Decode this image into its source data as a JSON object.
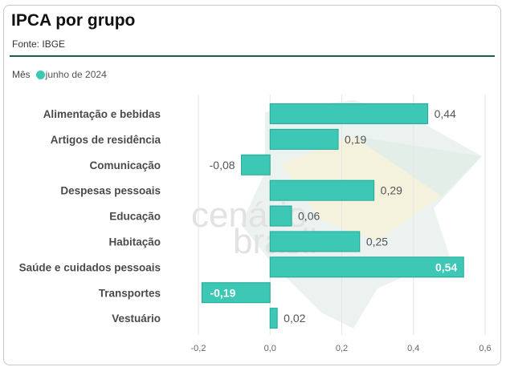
{
  "header": {
    "title": "IPCA por grupo",
    "source": "Fonte: IBGE"
  },
  "legend": {
    "label": "Mês",
    "series_name": "junho de 2024",
    "color": "#3cc8b4"
  },
  "watermark": "cenário brasil",
  "colors": {
    "bar": "#3cc8b4",
    "bar_border": "#22a896",
    "accent_rule": "#1a5e52",
    "grid": "#e6e6e6"
  },
  "chart_data": {
    "type": "bar",
    "orientation": "horizontal",
    "categories": [
      "Alimentação e bebidas",
      "Artigos de residência",
      "Comunicação",
      "Despesas pessoais",
      "Educação",
      "Habitação",
      "Saúde e cuidados pessoais",
      "Transportes",
      "Vestuário"
    ],
    "series": [
      {
        "name": "junho de 2024",
        "values": [
          0.44,
          0.19,
          -0.08,
          0.29,
          0.06,
          0.25,
          0.54,
          -0.19,
          0.02
        ]
      }
    ],
    "value_labels": [
      "0,44",
      "0,19",
      "-0,08",
      "0,29",
      "0,06",
      "0,25",
      "0,54",
      "-0,19",
      "0,02"
    ],
    "xlim": [
      -0.2,
      0.6
    ],
    "xticks": [
      -0.2,
      0.0,
      0.2,
      0.4,
      0.6
    ],
    "xtick_labels": [
      "-0,2",
      "0,0",
      "0,2",
      "0,4",
      "0,6"
    ],
    "grid": true,
    "legend_position": "top-left"
  }
}
